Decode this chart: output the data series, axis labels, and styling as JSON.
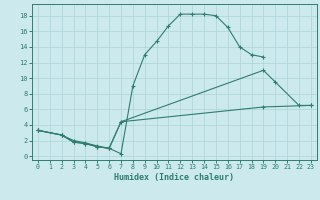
{
  "bg_color": "#cceaed",
  "line_color": "#2e7d6e",
  "grid_color": "#aad4d8",
  "xlabel": "Humidex (Indice chaleur)",
  "xlim": [
    -0.5,
    23.5
  ],
  "ylim": [
    -0.5,
    19.5
  ],
  "xticks": [
    0,
    1,
    2,
    3,
    4,
    5,
    6,
    7,
    8,
    9,
    10,
    11,
    12,
    13,
    14,
    15,
    16,
    17,
    18,
    19,
    20,
    21,
    22,
    23
  ],
  "yticks": [
    0,
    2,
    4,
    6,
    8,
    10,
    12,
    14,
    16,
    18
  ],
  "line1_x": [
    0,
    2,
    3,
    4,
    5,
    6,
    7,
    8,
    9,
    10,
    11,
    12,
    13,
    14,
    15,
    16,
    17,
    18,
    19
  ],
  "line1_y": [
    3.3,
    2.7,
    2.0,
    1.7,
    1.3,
    1.0,
    0.3,
    9.0,
    13.0,
    14.7,
    16.7,
    18.2,
    18.2,
    18.2,
    18.0,
    16.5,
    14.0,
    13.0,
    12.7
  ],
  "line2_x": [
    0,
    2,
    3,
    4,
    5,
    6,
    7,
    19,
    20,
    22,
    23
  ],
  "line2_y": [
    3.3,
    2.7,
    1.8,
    1.6,
    1.2,
    1.0,
    4.4,
    11.0,
    9.5,
    6.5,
    6.5
  ],
  "line3_x": [
    0,
    2,
    3,
    4,
    5,
    6,
    7,
    19,
    23
  ],
  "line3_y": [
    3.3,
    2.7,
    1.8,
    1.6,
    1.2,
    1.0,
    4.4,
    6.3,
    6.5
  ]
}
